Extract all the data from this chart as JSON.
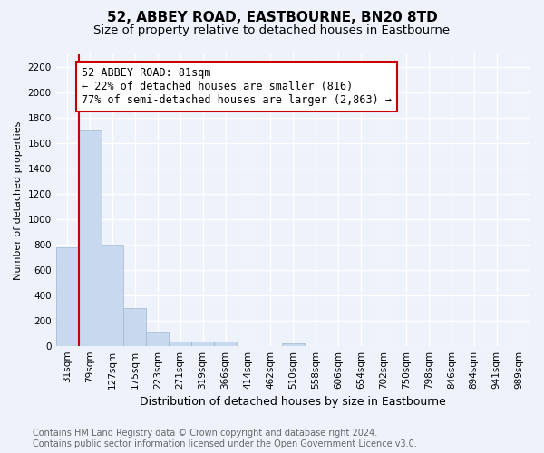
{
  "title": "52, ABBEY ROAD, EASTBOURNE, BN20 8TD",
  "subtitle": "Size of property relative to detached houses in Eastbourne",
  "xlabel": "Distribution of detached houses by size in Eastbourne",
  "ylabel": "Number of detached properties",
  "categories": [
    "31sqm",
    "79sqm",
    "127sqm",
    "175sqm",
    "223sqm",
    "271sqm",
    "319sqm",
    "366sqm",
    "414sqm",
    "462sqm",
    "510sqm",
    "558sqm",
    "606sqm",
    "654sqm",
    "702sqm",
    "750sqm",
    "798sqm",
    "846sqm",
    "894sqm",
    "941sqm",
    "989sqm"
  ],
  "values": [
    780,
    1700,
    800,
    300,
    110,
    35,
    30,
    30,
    0,
    0,
    20,
    0,
    0,
    0,
    0,
    0,
    0,
    0,
    0,
    0,
    0
  ],
  "bar_color": "#c8d8ee",
  "bar_edge_color": "#a0b8d0",
  "annotation_text": "52 ABBEY ROAD: 81sqm\n← 22% of detached houses are smaller (816)\n77% of semi-detached houses are larger (2,863) →",
  "annotation_box_color": "#cc0000",
  "property_line_xindex": 1,
  "ylim": [
    0,
    2300
  ],
  "yticks": [
    0,
    200,
    400,
    600,
    800,
    1000,
    1200,
    1400,
    1600,
    1800,
    2000,
    2200
  ],
  "footer_line1": "Contains HM Land Registry data © Crown copyright and database right 2024.",
  "footer_line2": "Contains public sector information licensed under the Open Government Licence v3.0.",
  "bg_color": "#eef3fb",
  "plot_bg_color": "#eef3fb",
  "grid_color": "#ffffff",
  "title_fontsize": 11,
  "subtitle_fontsize": 9.5,
  "xlabel_fontsize": 9,
  "ylabel_fontsize": 8,
  "tick_fontsize": 7.5,
  "annotation_fontsize": 8.5,
  "footer_fontsize": 7
}
